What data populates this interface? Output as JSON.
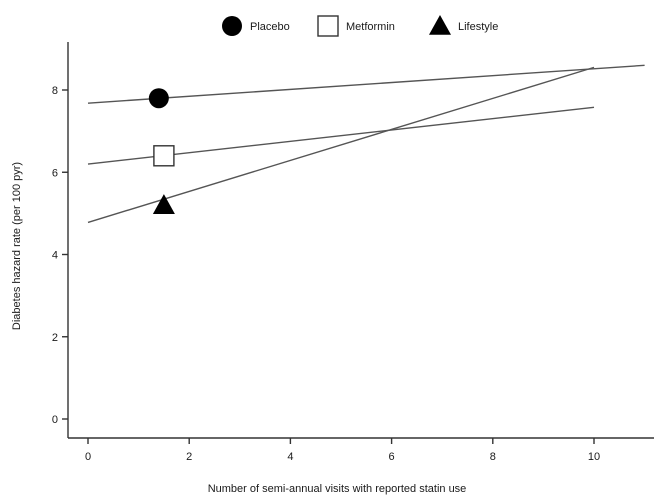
{
  "chart_data": {
    "type": "line",
    "title": "",
    "xlabel": "Number of semi-annual visits with reported statin use",
    "ylabel": "Diabetes hazard rate (per 100 pyr)",
    "xlim": [
      -0.4,
      11.2
    ],
    "ylim": [
      -0.3,
      9.1
    ],
    "x_ticks": [
      0,
      2,
      4,
      6,
      8,
      10
    ],
    "y_ticks": [
      0,
      2,
      4,
      6,
      8
    ],
    "grid": false,
    "legend_position": "top-center",
    "series": [
      {
        "name": "Placebo",
        "marker": "filled-circle",
        "color": "#000000",
        "line": {
          "x": [
            0,
            11
          ],
          "y": [
            7.68,
            8.6
          ]
        },
        "point": {
          "x": 1.4,
          "y": 7.8
        }
      },
      {
        "name": "Metformin",
        "marker": "open-square",
        "color": "#000000",
        "line": {
          "x": [
            0,
            10
          ],
          "y": [
            6.2,
            7.58
          ]
        },
        "point": {
          "x": 1.5,
          "y": 6.4
        }
      },
      {
        "name": "Lifestyle",
        "marker": "filled-triangle",
        "color": "#000000",
        "line": {
          "x": [
            0,
            10
          ],
          "y": [
            4.78,
            8.55
          ]
        },
        "point": {
          "x": 1.5,
          "y": 5.2
        }
      }
    ]
  }
}
